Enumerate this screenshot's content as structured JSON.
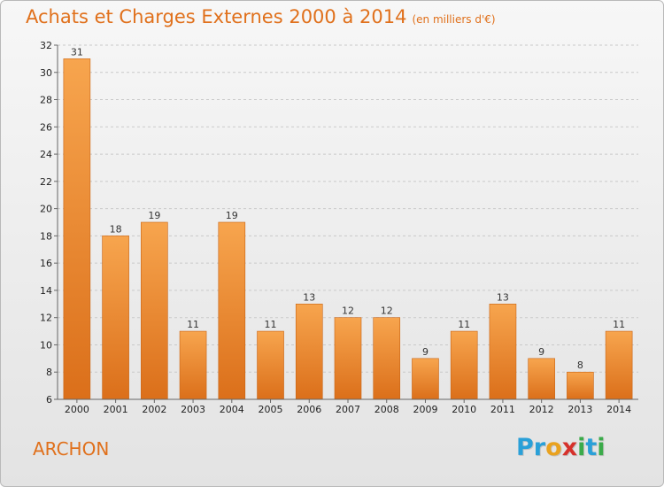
{
  "header": {
    "title": "Achats et Charges Externes 2000 à 2014",
    "unit": "(en milliers d'€)"
  },
  "commune": "ARCHON",
  "logo": {
    "letters": [
      {
        "ch": "P",
        "color": "#2aa0d8"
      },
      {
        "ch": "r",
        "color": "#2aa0d8"
      },
      {
        "ch": "o",
        "color": "#e9a21f"
      },
      {
        "ch": "x",
        "color": "#d6312b"
      },
      {
        "ch": "i",
        "color": "#3bab4a"
      },
      {
        "ch": "t",
        "color": "#2aa0d8"
      },
      {
        "ch": "i",
        "color": "#3bab4a"
      }
    ]
  },
  "chart_data": {
    "type": "bar",
    "title": "Achats et Charges Externes 2000 à 2014",
    "ylabel": "(en milliers d'€)",
    "categories": [
      "2000",
      "2001",
      "2002",
      "2003",
      "2004",
      "2005",
      "2006",
      "2007",
      "2008",
      "2009",
      "2010",
      "2011",
      "2012",
      "2013",
      "2014"
    ],
    "values": [
      31,
      18,
      19,
      11,
      19,
      11,
      13,
      12,
      12,
      9,
      11,
      13,
      9,
      8,
      11
    ],
    "ylim": [
      6,
      32
    ],
    "yticks": [
      6,
      8,
      10,
      12,
      14,
      16,
      18,
      20,
      22,
      24,
      26,
      28,
      30,
      32
    ],
    "grid": true,
    "bar_colors": {
      "top": "#f7a54e",
      "bottom": "#db6f1a",
      "edge": "#c96414"
    }
  }
}
